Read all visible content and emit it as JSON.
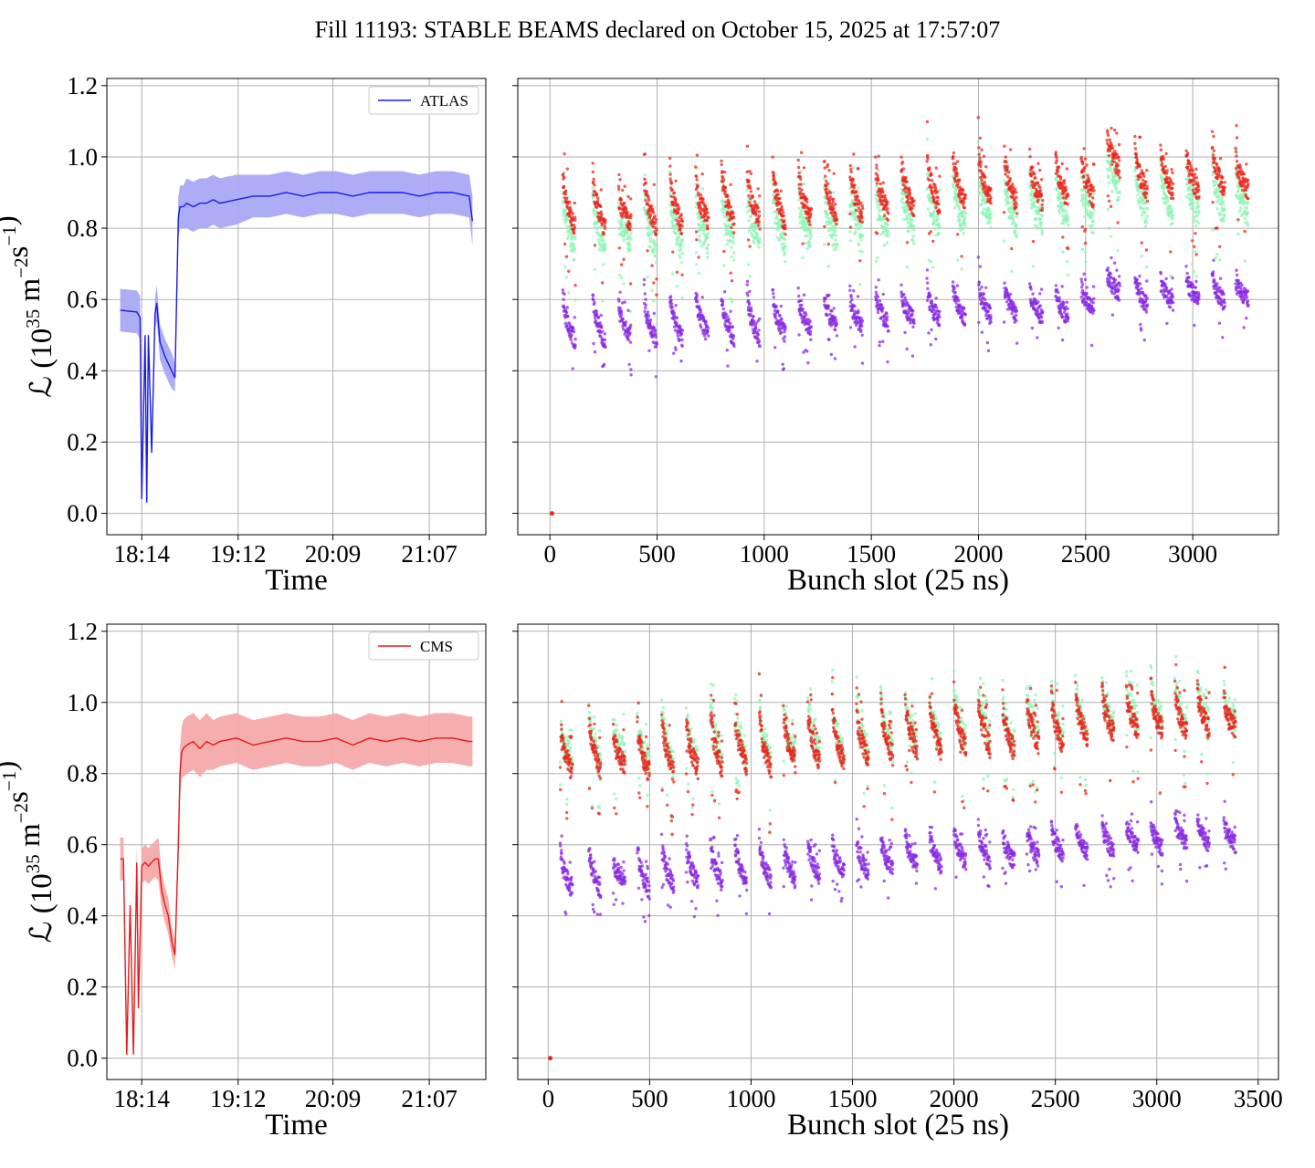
{
  "title": "Fill 11193: STABLE BEAMS declared on October 15, 2025 at 17:57:07",
  "colors": {
    "atlas_line": "#1a1ae6",
    "atlas_band": "#a9a9f5",
    "cms_line": "#e61a1a",
    "cms_band": "#f5a9a9",
    "scatter_red": "#e8281e",
    "scatter_green": "#8ef5b4",
    "scatter_purple": "#8a2be2",
    "grid": "#b0b0b0"
  },
  "chart_data": [
    {
      "id": "atlas-time",
      "type": "line",
      "xlabel": "Time",
      "ylabel": "ℒ (10^35 m^-2 s^-1)",
      "ylabel_base": "ℒ (10",
      "ylabel_exp1": "35",
      "ylabel_mid": " m",
      "ylabel_exp2": "−2",
      "ylabel_mid2": "s",
      "ylabel_exp3": "−1",
      "ylabel_end": ")",
      "x_ticks": [
        "18:14",
        "19:12",
        "20:09",
        "21:07"
      ],
      "y_ticks": [
        "0.0",
        "0.2",
        "0.4",
        "0.6",
        "0.8",
        "1.0",
        "1.2"
      ],
      "ylim": [
        -0.06,
        1.22
      ],
      "legend": "ATLAS",
      "legend_position": "top-right",
      "x_minutes": [
        0,
        10,
        12,
        13,
        15,
        16,
        17,
        19,
        21,
        22,
        24,
        27,
        29,
        31,
        33,
        34,
        35,
        36,
        38,
        40,
        44,
        48,
        52,
        56,
        60,
        70,
        80,
        90,
        100,
        110,
        120,
        130,
        140,
        150,
        160,
        170,
        180,
        190,
        200,
        210,
        212
      ],
      "values": [
        0.57,
        0.565,
        0.55,
        0.04,
        0.5,
        0.03,
        0.5,
        0.17,
        0.56,
        0.59,
        0.48,
        0.44,
        0.42,
        0.4,
        0.38,
        0.6,
        0.83,
        0.86,
        0.86,
        0.87,
        0.86,
        0.87,
        0.87,
        0.88,
        0.87,
        0.88,
        0.89,
        0.89,
        0.9,
        0.89,
        0.9,
        0.9,
        0.89,
        0.9,
        0.9,
        0.9,
        0.89,
        0.9,
        0.9,
        0.89,
        0.82
      ],
      "band_half_width": [
        0.06,
        0.06,
        0.06,
        0.01,
        0.01,
        0.01,
        0.01,
        0.01,
        0.05,
        0.05,
        0.05,
        0.05,
        0.05,
        0.05,
        0.04,
        0.05,
        0.06,
        0.06,
        0.06,
        0.07,
        0.07,
        0.07,
        0.07,
        0.07,
        0.07,
        0.07,
        0.06,
        0.06,
        0.06,
        0.06,
        0.06,
        0.06,
        0.06,
        0.06,
        0.06,
        0.06,
        0.06,
        0.06,
        0.06,
        0.06,
        0.07
      ],
      "grid": true
    },
    {
      "id": "atlas-bunch",
      "type": "scatter",
      "xlabel": "Bunch slot (25 ns)",
      "x_ticks": [
        "0",
        "500",
        "1000",
        "1500",
        "2000",
        "2500",
        "3000"
      ],
      "xlim": [
        -150,
        3400
      ],
      "ylim": [
        -0.06,
        1.22
      ],
      "trains_start": [
        60,
        200,
        320,
        440,
        560,
        680,
        800,
        920,
        1040,
        1160,
        1280,
        1400,
        1520,
        1640,
        1760,
        1880,
        2000,
        2120,
        2240,
        2360,
        2480,
        2600,
        2730,
        2850,
        2970,
        3090,
        3200
      ],
      "train_length": 60,
      "red_level_start": [
        0.96,
        0.96,
        0.9,
        0.95,
        0.97,
        0.95,
        0.98,
        0.96,
        0.98,
        0.97,
        0.98,
        0.99,
        0.99,
        1.0,
        1.01,
        1.02,
        1.02,
        1.02,
        1.0,
        1.01,
        1.01,
        1.06,
        1.03,
        1.03,
        1.02,
        1.05,
        1.0
      ],
      "red_level_end": [
        0.8,
        0.8,
        0.82,
        0.8,
        0.8,
        0.82,
        0.81,
        0.82,
        0.81,
        0.83,
        0.83,
        0.83,
        0.84,
        0.85,
        0.86,
        0.87,
        0.88,
        0.87,
        0.87,
        0.88,
        0.88,
        0.97,
        0.9,
        0.9,
        0.9,
        0.9,
        0.91
      ],
      "green_offset": -0.06,
      "purple_level_start": [
        0.62,
        0.62,
        0.58,
        0.62,
        0.62,
        0.62,
        0.62,
        0.62,
        0.62,
        0.62,
        0.62,
        0.62,
        0.63,
        0.63,
        0.64,
        0.64,
        0.66,
        0.65,
        0.63,
        0.63,
        0.64,
        0.68,
        0.67,
        0.66,
        0.67,
        0.68,
        0.66
      ],
      "purple_level_end": [
        0.48,
        0.48,
        0.5,
        0.48,
        0.49,
        0.5,
        0.49,
        0.49,
        0.5,
        0.51,
        0.52,
        0.52,
        0.53,
        0.54,
        0.54,
        0.55,
        0.55,
        0.55,
        0.55,
        0.55,
        0.57,
        0.62,
        0.58,
        0.59,
        0.6,
        0.59,
        0.6
      ],
      "zero_point": [
        10,
        0.0
      ],
      "grid": true
    },
    {
      "id": "cms-time",
      "type": "line",
      "xlabel": "Time",
      "ylabel": "ℒ (10^35 m^-2 s^-1)",
      "ylabel_base": "ℒ (10",
      "ylabel_exp1": "35",
      "ylabel_mid": " m",
      "ylabel_exp2": "−2",
      "ylabel_mid2": "s",
      "ylabel_exp3": "−1",
      "ylabel_end": ")",
      "x_ticks": [
        "18:14",
        "19:12",
        "20:09",
        "21:07"
      ],
      "y_ticks": [
        "0.0",
        "0.2",
        "0.4",
        "0.6",
        "0.8",
        "1.0",
        "1.2"
      ],
      "ylim": [
        -0.06,
        1.22
      ],
      "legend": "CMS",
      "legend_position": "top-right",
      "x_minutes": [
        0,
        2,
        4,
        6,
        8,
        10,
        11,
        13,
        15,
        17,
        19,
        21,
        23,
        25,
        27,
        29,
        31,
        33,
        35,
        36,
        37,
        38,
        40,
        44,
        48,
        52,
        56,
        60,
        70,
        80,
        90,
        100,
        110,
        120,
        130,
        140,
        150,
        160,
        170,
        180,
        190,
        200,
        210,
        212
      ],
      "values": [
        0.56,
        0.56,
        0.01,
        0.43,
        0.01,
        0.55,
        0.14,
        0.54,
        0.55,
        0.54,
        0.55,
        0.56,
        0.56,
        0.47,
        0.43,
        0.4,
        0.33,
        0.29,
        0.6,
        0.8,
        0.86,
        0.87,
        0.88,
        0.89,
        0.87,
        0.89,
        0.88,
        0.89,
        0.9,
        0.88,
        0.89,
        0.9,
        0.89,
        0.89,
        0.9,
        0.88,
        0.9,
        0.89,
        0.9,
        0.89,
        0.9,
        0.9,
        0.89,
        0.89
      ],
      "band_half_width": [
        0.06,
        0.06,
        0.01,
        0.01,
        0.01,
        0.05,
        0.01,
        0.05,
        0.05,
        0.05,
        0.05,
        0.05,
        0.06,
        0.05,
        0.05,
        0.05,
        0.04,
        0.04,
        0.06,
        0.07,
        0.07,
        0.08,
        0.08,
        0.08,
        0.08,
        0.08,
        0.07,
        0.07,
        0.07,
        0.07,
        0.07,
        0.07,
        0.07,
        0.07,
        0.07,
        0.07,
        0.07,
        0.07,
        0.07,
        0.07,
        0.07,
        0.07,
        0.07,
        0.07
      ],
      "grid": true
    },
    {
      "id": "cms-bunch",
      "type": "scatter",
      "xlabel": "Bunch slot (25 ns)",
      "x_ticks": [
        "0",
        "500",
        "1000",
        "1500",
        "2000",
        "2500",
        "3000",
        "3500"
      ],
      "xlim": [
        -150,
        3600
      ],
      "ylim": [
        -0.06,
        1.22
      ],
      "trains_start": [
        60,
        200,
        320,
        440,
        560,
        680,
        800,
        920,
        1040,
        1160,
        1280,
        1400,
        1520,
        1640,
        1760,
        1880,
        2000,
        2120,
        2240,
        2360,
        2480,
        2600,
        2730,
        2850,
        2970,
        3090,
        3200,
        3330
      ],
      "train_length": 60,
      "red_level_start": [
        0.95,
        0.97,
        0.92,
        0.95,
        0.98,
        0.97,
        0.99,
        0.98,
        0.99,
        0.98,
        0.99,
        1.0,
        0.99,
        1.0,
        1.02,
        1.02,
        1.03,
        1.02,
        1.01,
        1.02,
        1.03,
        1.03,
        1.05,
        1.04,
        1.04,
        1.05,
        1.05,
        1.02
      ],
      "red_level_end": [
        0.8,
        0.81,
        0.82,
        0.8,
        0.8,
        0.81,
        0.81,
        0.82,
        0.81,
        0.83,
        0.83,
        0.83,
        0.84,
        0.85,
        0.86,
        0.86,
        0.87,
        0.87,
        0.86,
        0.88,
        0.88,
        0.9,
        0.91,
        0.92,
        0.92,
        0.91,
        0.92,
        0.92
      ],
      "green_offset": 0.02,
      "purple_level_start": [
        0.6,
        0.6,
        0.56,
        0.6,
        0.61,
        0.61,
        0.61,
        0.62,
        0.61,
        0.61,
        0.61,
        0.62,
        0.62,
        0.63,
        0.64,
        0.64,
        0.65,
        0.65,
        0.64,
        0.65,
        0.66,
        0.66,
        0.67,
        0.66,
        0.67,
        0.68,
        0.68,
        0.67
      ],
      "purple_level_end": [
        0.47,
        0.47,
        0.5,
        0.47,
        0.48,
        0.49,
        0.49,
        0.49,
        0.5,
        0.5,
        0.51,
        0.52,
        0.52,
        0.53,
        0.54,
        0.54,
        0.55,
        0.55,
        0.55,
        0.56,
        0.57,
        0.58,
        0.58,
        0.59,
        0.59,
        0.6,
        0.6,
        0.6
      ],
      "zero_point": [
        10,
        0.0
      ],
      "grid": true
    }
  ]
}
